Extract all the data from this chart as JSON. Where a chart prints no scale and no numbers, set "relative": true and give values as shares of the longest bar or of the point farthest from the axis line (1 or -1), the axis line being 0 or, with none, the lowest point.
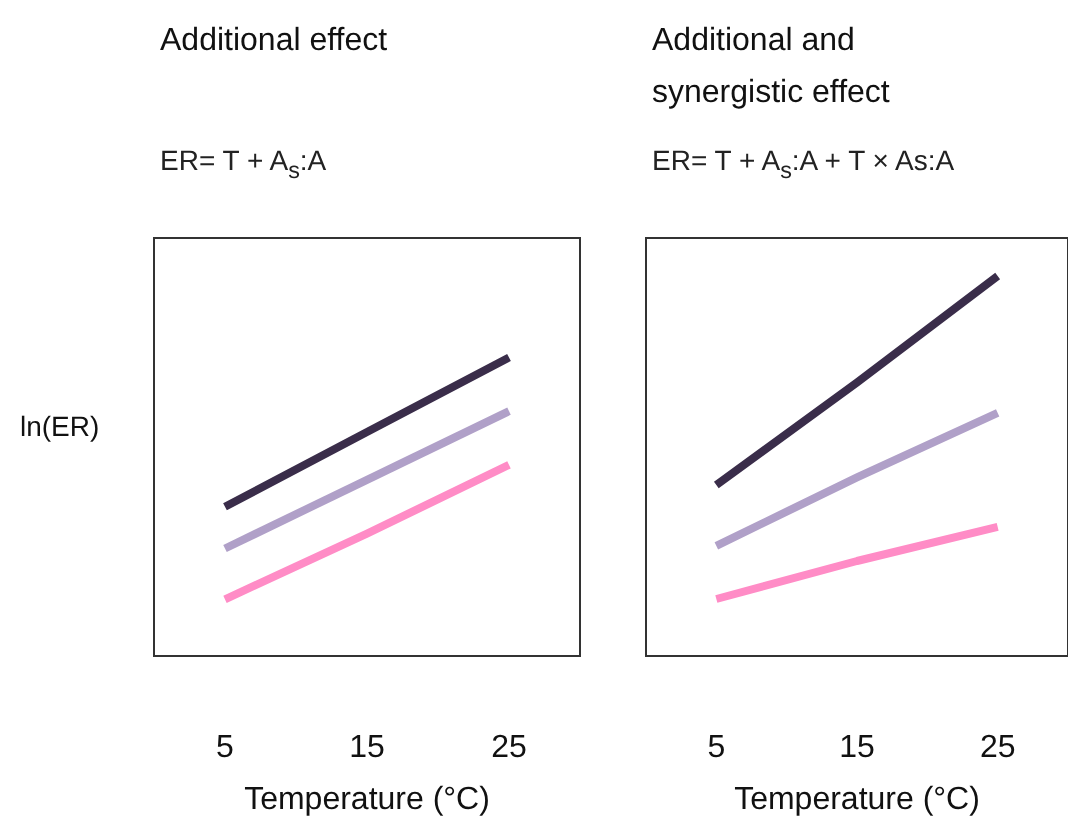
{
  "chart_data": [
    {
      "type": "line",
      "title": "Additional effect",
      "subtitle": "ER= T + A$_{s}$:A",
      "xlabel": "Temperature (°C)",
      "ylabel": "ln(ER)",
      "relative": true,
      "tick_labels": "x",
      "marker": "none",
      "line_style": "solid",
      "categories": [
        "5",
        "15",
        "25"
      ],
      "series": [
        {
          "color": "#3a2d4a",
          "values": [
            0.5,
            0.75,
            1
          ]
        },
        {
          "color": "#b0a0c8",
          "values": [
            0.36,
            0.59,
            0.82
          ]
        },
        {
          "color": "#ff8cc6",
          "values": [
            0.19,
            0.41,
            0.64
          ]
        }
      ]
    },
    {
      "type": "line",
      "title": "Additional and synergistic effect",
      "subtitle": "ER= T + A$_{s}$:A + T × As:A",
      "xlabel": "Temperature (°C)",
      "relative": true,
      "tick_labels": "x",
      "marker": "none",
      "line_style": "solid",
      "categories": [
        "5",
        "15",
        "25"
      ],
      "series": [
        {
          "color": "#3a2d4a",
          "values": [
            0.45,
            0.72,
            1
          ]
        },
        {
          "color": "#b0a0c8",
          "values": [
            0.29,
            0.47,
            0.64
          ]
        },
        {
          "color": "#ff8cc6",
          "values": [
            0.15,
            0.25,
            0.34
          ]
        }
      ]
    }
  ]
}
